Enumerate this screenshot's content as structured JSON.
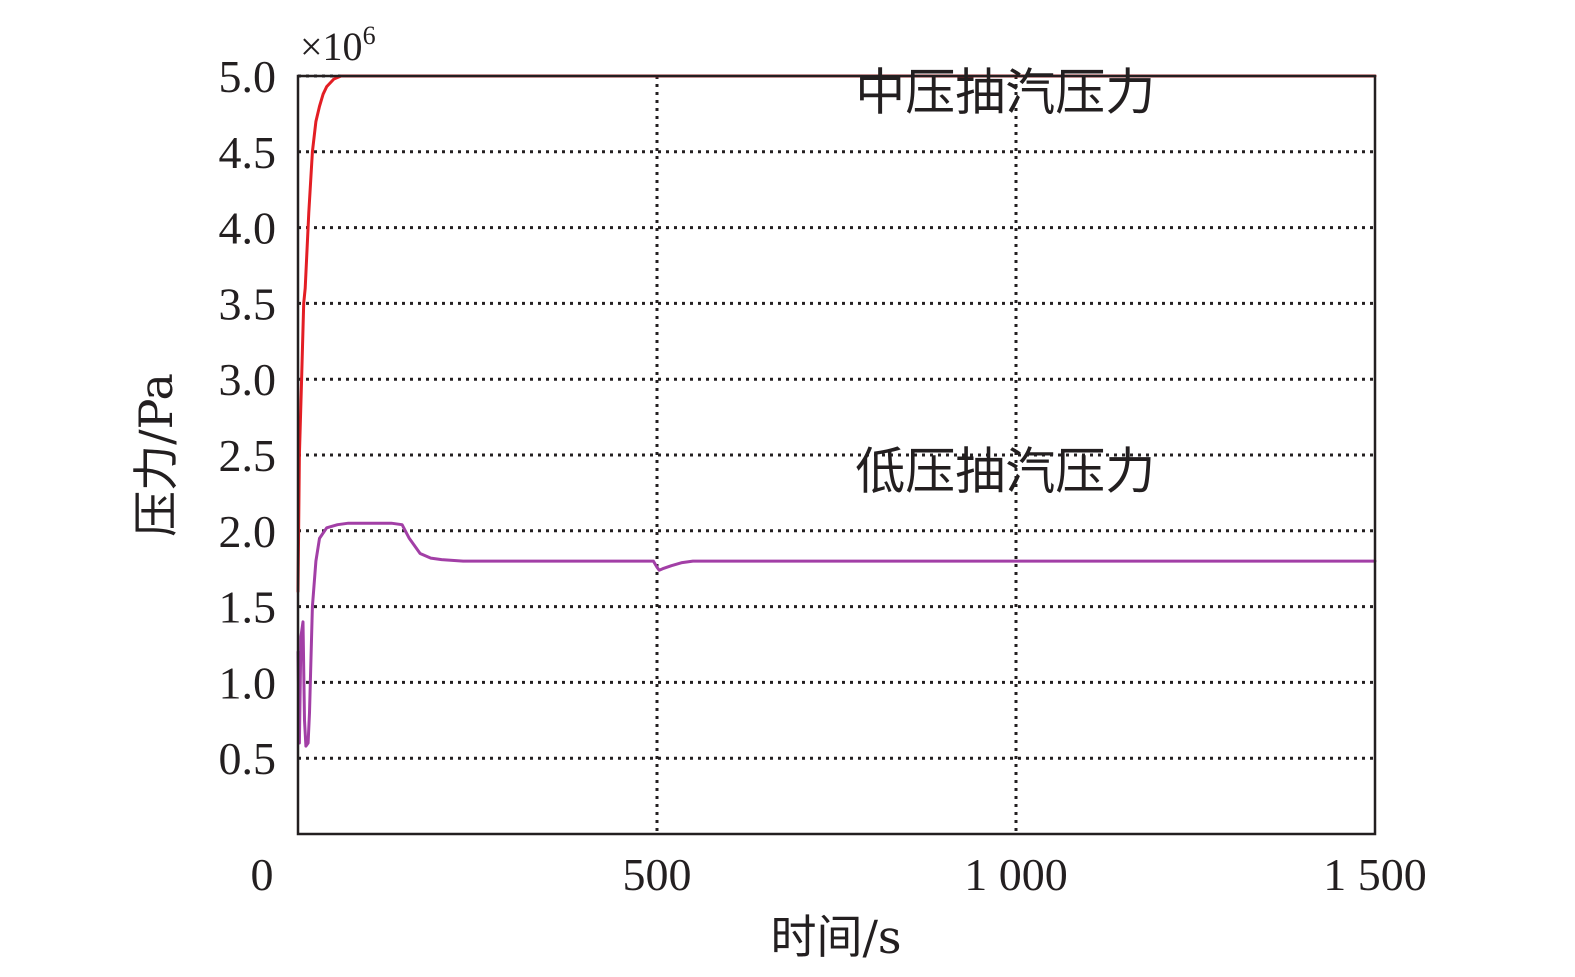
{
  "chart_data": {
    "type": "line",
    "xlabel": "时间/s",
    "ylabel": "压力/Pa",
    "y_multiplier": "×10",
    "y_multiplier_exp": "6",
    "xlim": [
      0,
      1500
    ],
    "ylim": [
      0,
      5.0
    ],
    "x_ticks": [
      {
        "value": 0,
        "label": "0"
      },
      {
        "value": 500,
        "label": "500"
      },
      {
        "value": 1000,
        "label": "1 000"
      },
      {
        "value": 1500,
        "label": "1 500"
      }
    ],
    "y_ticks": [
      {
        "value": 0.5,
        "label": "0.5"
      },
      {
        "value": 1.0,
        "label": "1.0"
      },
      {
        "value": 1.5,
        "label": "1.5"
      },
      {
        "value": 2.0,
        "label": "2.0"
      },
      {
        "value": 2.5,
        "label": "2.5"
      },
      {
        "value": 3.0,
        "label": "3.0"
      },
      {
        "value": 3.5,
        "label": "3.5"
      },
      {
        "value": 4.0,
        "label": "4.0"
      },
      {
        "value": 4.5,
        "label": "4.5"
      },
      {
        "value": 5.0,
        "label": "5.0"
      }
    ],
    "grid": true,
    "series": [
      {
        "name": "中压抽汽压力",
        "color": "#e31e24",
        "x": [
          0,
          2,
          5,
          8,
          10,
          15,
          20,
          25,
          30,
          35,
          40,
          50,
          60,
          65,
          1500
        ],
        "y": [
          1.6,
          2.5,
          3.0,
          3.5,
          3.6,
          4.1,
          4.5,
          4.7,
          4.8,
          4.88,
          4.93,
          4.98,
          5.0,
          5.0,
          5.0
        ]
      },
      {
        "name": "低压抽汽压力",
        "color": "#a23fa6",
        "x": [
          0,
          2,
          4,
          7,
          9,
          11,
          14,
          16,
          20,
          25,
          30,
          40,
          55,
          70,
          100,
          130,
          145,
          155,
          170,
          185,
          200,
          230,
          300,
          400,
          495,
          500,
          503,
          508,
          520,
          535,
          550,
          600,
          800,
          1000,
          1200,
          1500
        ],
        "y": [
          1.2,
          0.6,
          1.3,
          1.4,
          0.75,
          0.58,
          0.6,
          0.8,
          1.5,
          1.8,
          1.95,
          2.02,
          2.04,
          2.05,
          2.05,
          2.05,
          2.04,
          1.95,
          1.85,
          1.82,
          1.81,
          1.8,
          1.8,
          1.8,
          1.8,
          1.76,
          1.74,
          1.75,
          1.77,
          1.79,
          1.8,
          1.8,
          1.8,
          1.8,
          1.8,
          1.8
        ]
      }
    ],
    "annotations": [
      {
        "text": "中压抽汽压力",
        "x": 985,
        "y": 4.78
      },
      {
        "text": "低压抽汽压力",
        "x": 985,
        "y": 2.28
      }
    ]
  }
}
